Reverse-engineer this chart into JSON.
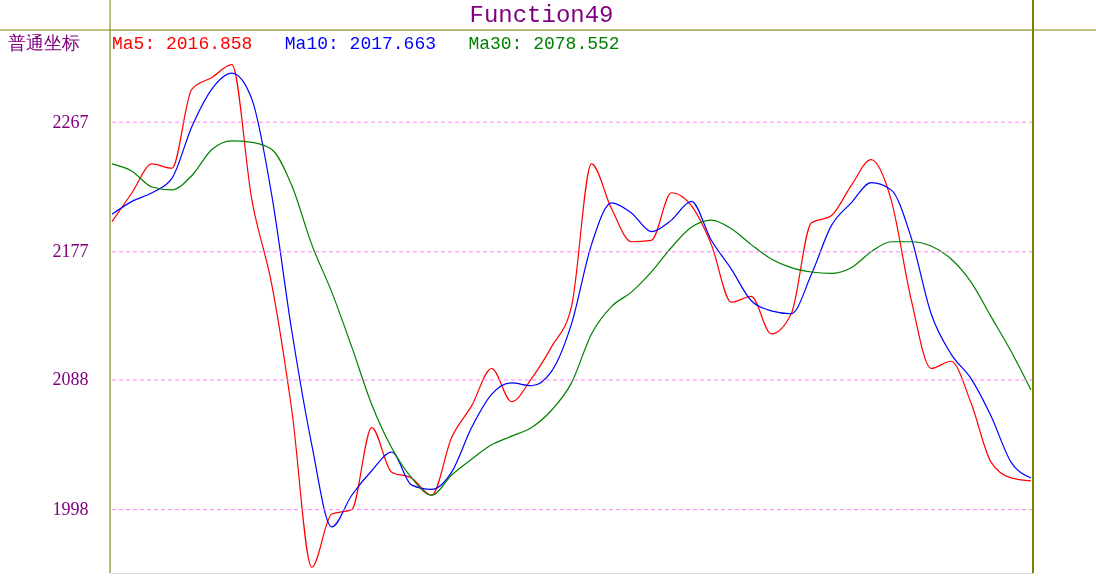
{
  "chart_data": {
    "type": "line",
    "title": "Function49",
    "annotations": [
      "普通坐标"
    ],
    "categories": [
      null,
      null,
      null,
      null,
      null,
      null,
      null,
      null,
      null,
      null,
      null,
      null,
      null,
      null,
      null,
      null,
      null,
      null,
      null,
      null,
      null,
      null,
      null,
      null,
      null,
      null,
      null,
      null,
      null,
      null,
      null,
      null,
      null,
      null,
      null,
      null,
      null,
      null,
      null,
      null,
      null,
      null,
      null,
      null,
      null,
      null,
      null
    ],
    "series": [
      {
        "name": "Ma5: 2016.858",
        "color": "#ff0000",
        "values": [
          2198,
          2218,
          2238,
          2235,
          2290,
          2298,
          2307,
          2213,
          2154,
          2067,
          1958,
          1995,
          1998,
          2055,
          2024,
          2020,
          2008,
          2048,
          2070,
          2096,
          2073,
          2089,
          2111,
          2139,
          2238,
          2207,
          2184,
          2185,
          2218,
          2209,
          2182,
          2142,
          2146,
          2120,
          2134,
          2197,
          2202,
          2223,
          2241,
          2213,
          2144,
          2096,
          2101,
          2072,
          2031,
          2020,
          2018
        ]
      },
      {
        "name": "Ma10: 2017.663",
        "color": "#0000ff",
        "values": [
          2203,
          2212,
          2218,
          2228,
          2264,
          2290,
          2301,
          2283,
          2216,
          2122,
          2043,
          1986,
          2008,
          2025,
          2038,
          2015,
          2012,
          2024,
          2055,
          2078,
          2086,
          2084,
          2094,
          2127,
          2182,
          2211,
          2204,
          2191,
          2199,
          2212,
          2185,
          2165,
          2143,
          2136,
          2134,
          2161,
          2195,
          2211,
          2225,
          2220,
          2187,
          2134,
          2106,
          2089,
          2063,
          2031,
          2020
        ]
      },
      {
        "name": "Ma30: 2078.552",
        "color": "#008000",
        "values": [
          2238,
          2233,
          2222,
          2220,
          2230,
          2248,
          2254,
          2253,
          2248,
          2223,
          2182,
          2149,
          2111,
          2071,
          2041,
          2020,
          2008,
          2022,
          2033,
          2043,
          2049,
          2055,
          2067,
          2086,
          2120,
          2139,
          2149,
          2163,
          2180,
          2194,
          2199,
          2193,
          2182,
          2172,
          2166,
          2163,
          2162,
          2166,
          2177,
          2184,
          2184,
          2181,
          2172,
          2156,
          2132,
          2108,
          2081
        ]
      }
    ],
    "ylim": [
      1954,
      2331
    ],
    "yticks": [
      1998,
      2088,
      2177,
      2267
    ],
    "grid": "y",
    "legend": "top left",
    "tick_labels": "y",
    "line_style": "solid",
    "marker": "none"
  }
}
